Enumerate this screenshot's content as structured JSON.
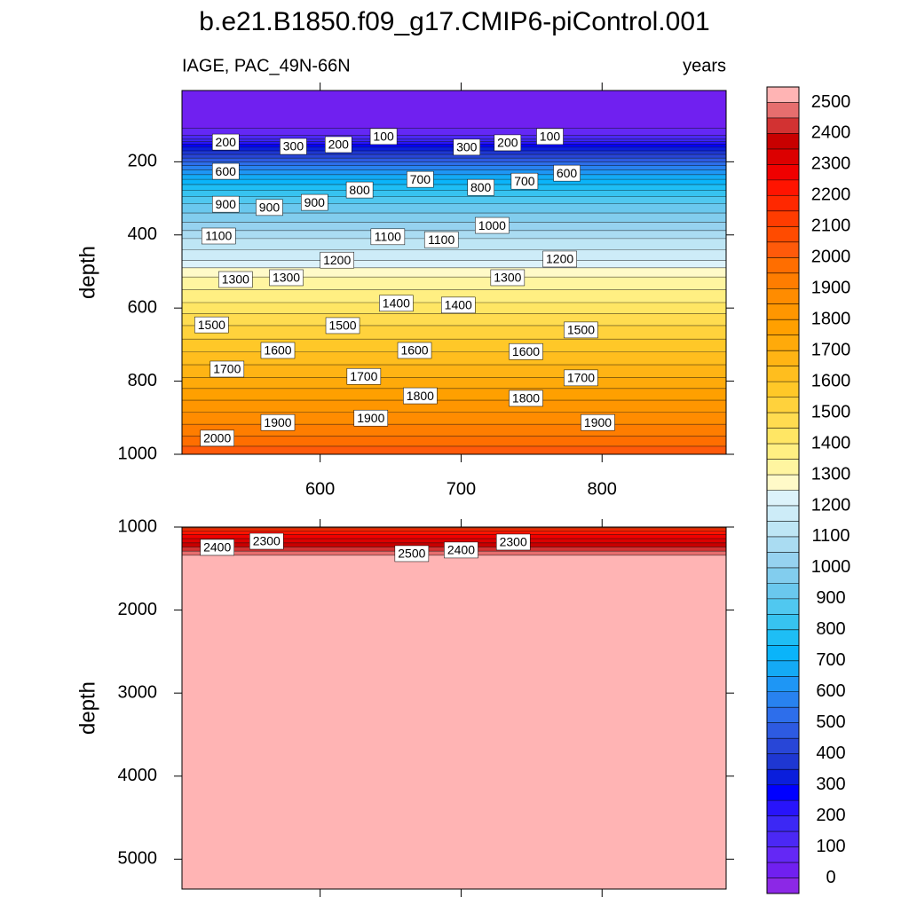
{
  "title": "b.e21.B1850.f09_g17.CMIP6-piControl.001",
  "chart_data": [
    {
      "type": "contour",
      "subtitle_left": "IAGE, PAC_49N-66N",
      "subtitle_right": "years",
      "y_label": "depth",
      "xlim": [
        502,
        888
      ],
      "xticks": [
        600,
        700,
        800
      ],
      "ylim": [
        5,
        1000
      ],
      "yticks": [
        200,
        400,
        600,
        800,
        1000
      ],
      "y_inverted": true,
      "contour_levels": [
        50,
        100,
        150,
        200,
        250,
        300,
        350,
        400,
        450,
        500,
        550,
        600,
        650,
        700,
        750,
        800,
        850,
        900,
        950,
        1000,
        1050,
        1100,
        1150,
        1200,
        1250,
        1300,
        1350,
        1400,
        1450,
        1500,
        1550,
        1600,
        1650,
        1700,
        1750,
        1800,
        1850,
        1900,
        1950,
        2000,
        2050
      ],
      "contour_depths": [
        108,
        128,
        138,
        145,
        152,
        160,
        170,
        180,
        190,
        200,
        210,
        222,
        235,
        248,
        262,
        278,
        295,
        315,
        340,
        365,
        388,
        410,
        440,
        470,
        490,
        515,
        550,
        585,
        615,
        648,
        685,
        720,
        755,
        790,
        820,
        852,
        885,
        918,
        950,
        978,
        1000
      ],
      "contour_labels": [
        {
          "value": 200,
          "x": 533,
          "y": 146
        },
        {
          "value": 300,
          "x": 581,
          "y": 158
        },
        {
          "value": 200,
          "x": 613,
          "y": 153
        },
        {
          "value": 100,
          "x": 645,
          "y": 131
        },
        {
          "value": 300,
          "x": 704,
          "y": 160
        },
        {
          "value": 200,
          "x": 733,
          "y": 148
        },
        {
          "value": 100,
          "x": 763,
          "y": 131
        },
        {
          "value": 600,
          "x": 533,
          "y": 226
        },
        {
          "value": 700,
          "x": 671,
          "y": 248
        },
        {
          "value": 800,
          "x": 714,
          "y": 270
        },
        {
          "value": 700,
          "x": 745,
          "y": 253
        },
        {
          "value": 600,
          "x": 775,
          "y": 231
        },
        {
          "value": 900,
          "x": 533,
          "y": 316
        },
        {
          "value": 900,
          "x": 564,
          "y": 325
        },
        {
          "value": 900,
          "x": 596,
          "y": 311
        },
        {
          "value": 800,
          "x": 628,
          "y": 277
        },
        {
          "value": 1100,
          "x": 528,
          "y": 403
        },
        {
          "value": 1100,
          "x": 648,
          "y": 405
        },
        {
          "value": 1100,
          "x": 686,
          "y": 413
        },
        {
          "value": 1000,
          "x": 722,
          "y": 374
        },
        {
          "value": 1200,
          "x": 612,
          "y": 469
        },
        {
          "value": 1200,
          "x": 770,
          "y": 466
        },
        {
          "value": 1300,
          "x": 540,
          "y": 522
        },
        {
          "value": 1300,
          "x": 576,
          "y": 517
        },
        {
          "value": 1300,
          "x": 733,
          "y": 517
        },
        {
          "value": 1400,
          "x": 654,
          "y": 587
        },
        {
          "value": 1400,
          "x": 698,
          "y": 592
        },
        {
          "value": 1500,
          "x": 523,
          "y": 646
        },
        {
          "value": 1500,
          "x": 616,
          "y": 648
        },
        {
          "value": 1500,
          "x": 785,
          "y": 660
        },
        {
          "value": 1600,
          "x": 570,
          "y": 716
        },
        {
          "value": 1600,
          "x": 667,
          "y": 716
        },
        {
          "value": 1600,
          "x": 746,
          "y": 719
        },
        {
          "value": 1700,
          "x": 534,
          "y": 767
        },
        {
          "value": 1700,
          "x": 631,
          "y": 787
        },
        {
          "value": 1700,
          "x": 785,
          "y": 791
        },
        {
          "value": 1800,
          "x": 671,
          "y": 840
        },
        {
          "value": 1800,
          "x": 746,
          "y": 847
        },
        {
          "value": 1900,
          "x": 570,
          "y": 913
        },
        {
          "value": 1900,
          "x": 636,
          "y": 901
        },
        {
          "value": 1900,
          "x": 797,
          "y": 913
        },
        {
          "value": 2000,
          "x": 527,
          "y": 956
        }
      ]
    },
    {
      "type": "contour",
      "y_label": "depth",
      "xlim": [
        502,
        888
      ],
      "ylim": [
        1000,
        5360
      ],
      "yticks": [
        1000,
        2000,
        3000,
        4000,
        5000
      ],
      "y_inverted": true,
      "contour_levels": [
        2100,
        2150,
        2200,
        2250,
        2300,
        2350,
        2400,
        2450,
        2500
      ],
      "contour_depths": [
        1005,
        1020,
        1050,
        1090,
        1140,
        1190,
        1240,
        1290,
        1340
      ],
      "contour_labels": [
        {
          "value": 2400,
          "x": 527,
          "y": 1245
        },
        {
          "value": 2300,
          "x": 562,
          "y": 1171
        },
        {
          "value": 2500,
          "x": 665,
          "y": 1320
        },
        {
          "value": 2400,
          "x": 700,
          "y": 1277
        },
        {
          "value": 2300,
          "x": 737,
          "y": 1181
        }
      ]
    }
  ],
  "colorbar": {
    "levels": [
      0,
      50,
      100,
      150,
      200,
      250,
      300,
      350,
      400,
      450,
      500,
      550,
      600,
      650,
      700,
      750,
      800,
      850,
      900,
      950,
      1000,
      1050,
      1100,
      1150,
      1200,
      1250,
      1300,
      1350,
      1400,
      1450,
      1500,
      1550,
      1600,
      1650,
      1700,
      1750,
      1800,
      1850,
      1900,
      1950,
      2000,
      2050,
      2100,
      2150,
      2200,
      2250,
      2300,
      2350,
      2400,
      2450,
      2500
    ],
    "colors": [
      "#8c28e6",
      "#7020f0",
      "#6428f5",
      "#4b28f5",
      "#3c28f5",
      "#2814fa",
      "#0000ff",
      "#0a1edc",
      "#1e37d2",
      "#2846d7",
      "#2d5ae1",
      "#2d6eeb",
      "#2882f0",
      "#1e96f5",
      "#14aaf5",
      "#0ab4fa",
      "#1ebef5",
      "#37c3f0",
      "#50c8f0",
      "#6ac8ee",
      "#82cdee",
      "#96d2f0",
      "#aadcf2",
      "#bee6f5",
      "#cdecf8",
      "#dcf2fa",
      "#fffac8",
      "#fff5a0",
      "#ffef82",
      "#ffe664",
      "#ffdc50",
      "#ffd23c",
      "#ffc828",
      "#ffbe1e",
      "#ffb414",
      "#ffaa0a",
      "#ffa000",
      "#ff9600",
      "#ff8c00",
      "#ff7d00",
      "#ff6e00",
      "#ff5a0a",
      "#ff4b00",
      "#ff3c00",
      "#ff2800",
      "#ff1400",
      "#f00000",
      "#dc0000",
      "#c80000",
      "#d23232",
      "#e66e6e",
      "#ffb4b4"
    ],
    "ticks": [
      0,
      100,
      200,
      300,
      400,
      500,
      600,
      700,
      800,
      900,
      1000,
      1100,
      1200,
      1300,
      1400,
      1500,
      1600,
      1700,
      1800,
      1900,
      2000,
      2100,
      2200,
      2300,
      2400,
      2500
    ]
  }
}
